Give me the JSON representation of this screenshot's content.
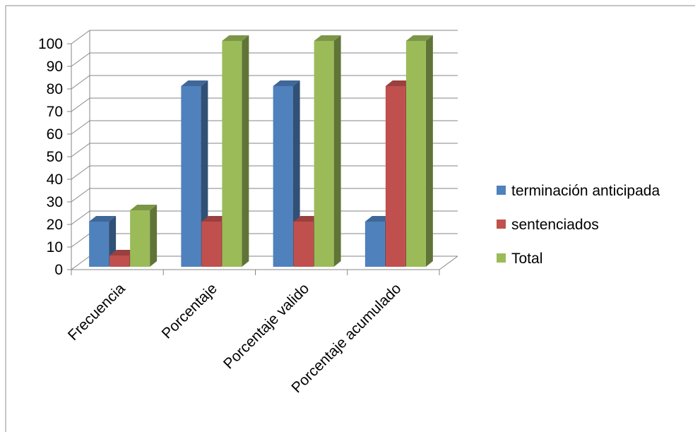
{
  "chart_data": {
    "type": "bar",
    "categories": [
      "Frecuencia",
      "Porcentaje",
      "Porcentaje valido",
      "Porcentaje acumulado"
    ],
    "series": [
      {
        "name": "terminación anticipada",
        "values": [
          20,
          80,
          80,
          20
        ],
        "color": "#4F81BD"
      },
      {
        "name": "sentenciados",
        "values": [
          5,
          20,
          20,
          80
        ],
        "color": "#C0504D"
      },
      {
        "name": "Total",
        "values": [
          25,
          100,
          100,
          100
        ],
        "color": "#9BBB59"
      }
    ],
    "ylim": [
      0,
      100
    ],
    "yticks": [
      0,
      10,
      20,
      30,
      40,
      50,
      60,
      70,
      80,
      90,
      100
    ],
    "grid": true,
    "legend_position": "right",
    "style": "3d-clustered-column"
  }
}
